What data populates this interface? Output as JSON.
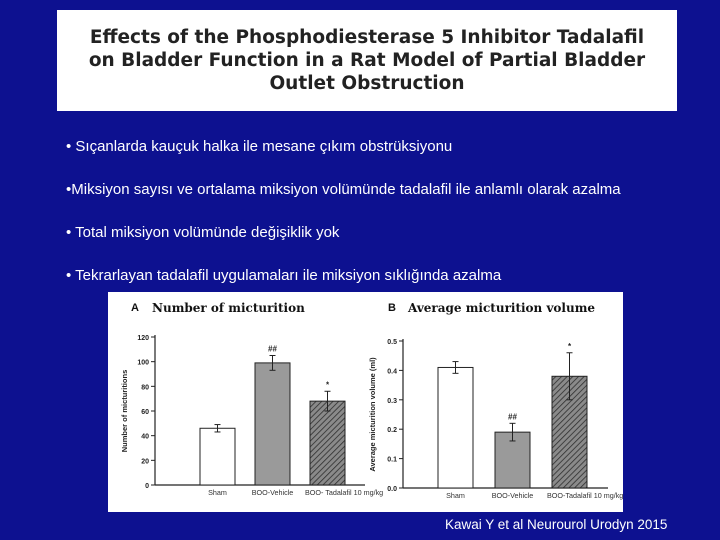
{
  "title": "Effects of the Phosphodiesterase 5 Inhibitor Tadalafil on Bladder Function in a Rat Model of Partial Bladder Outlet Obstruction",
  "bullets": [
    "• Sıçanlarda kauçuk halka ile mesane çıkım obstrüksiyonu",
    "•Miksiyon sayısı ve ortalama miksiyon volümünde tadalafil ile anlamlı olarak azalma",
    "• Total miksiyon volümünde değişiklik yok",
    "• Tekrarlayan tadalafil uygulamaları ile  miksiyon sıklığında azalma"
  ],
  "citation": "Kawai Y et al Neurourol Urodyn 2015",
  "chart_data": [
    {
      "type": "bar",
      "panel": "A",
      "title": "Number of micturition",
      "ylabel": "Number of micturitions",
      "xlabel": "",
      "ylim": [
        0,
        120
      ],
      "yticks": [
        "0",
        "20",
        "40",
        "60",
        "80",
        "100",
        "120"
      ],
      "categories": [
        "Sham",
        "BOO-Vehicle",
        "BOO- Tadalafil 10 mg/kg"
      ],
      "values": [
        46,
        99,
        68
      ],
      "errors": [
        3,
        6,
        8
      ],
      "significance": [
        "",
        "##",
        "*"
      ]
    },
    {
      "type": "bar",
      "panel": "B",
      "title": "Average micturition volume",
      "ylabel": "Average micturition volume (ml)",
      "xlabel": "",
      "ylim": [
        0,
        0.5
      ],
      "yticks": [
        "0.0",
        "0.1",
        "0.2",
        "0.3",
        "0.4",
        "0.5"
      ],
      "categories": [
        "Sham",
        "BOO-Vehicle",
        "BOO-Tadalafil 10 mg/kg"
      ],
      "values": [
        0.41,
        0.19,
        0.38
      ],
      "errors": [
        0.02,
        0.03,
        0.08
      ],
      "significance": [
        "",
        "##",
        "*"
      ]
    }
  ]
}
